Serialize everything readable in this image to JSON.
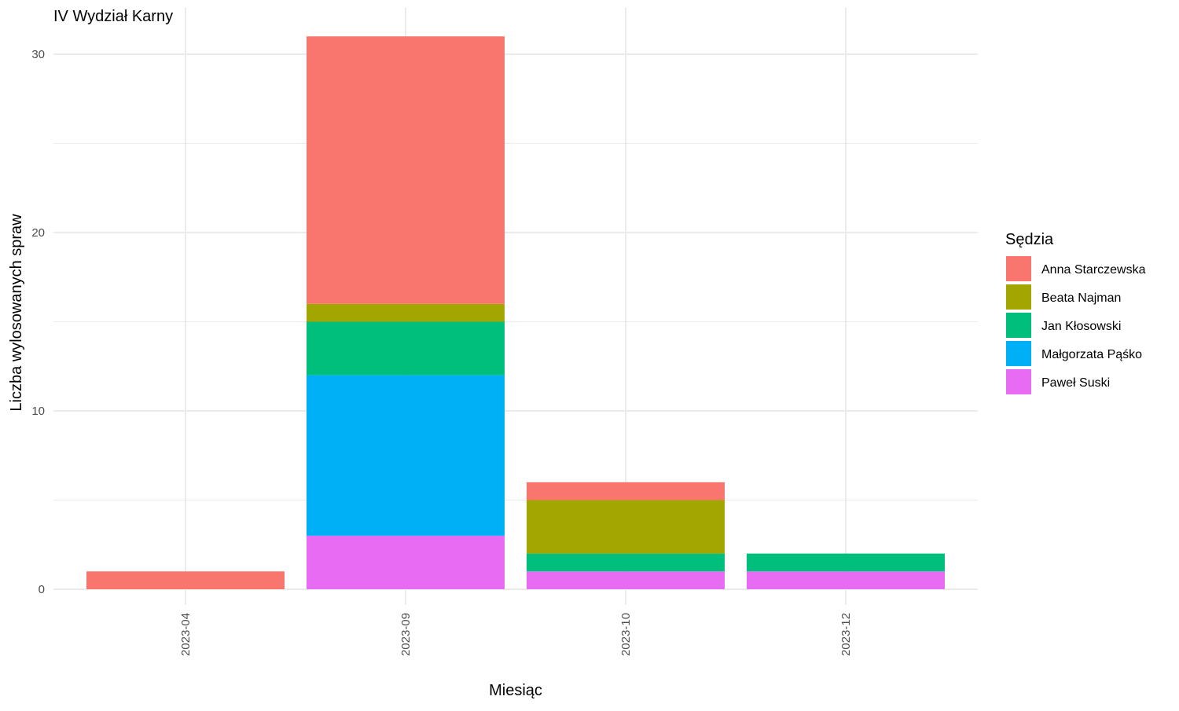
{
  "chart_data": {
    "type": "bar",
    "stacked": true,
    "title": "IV Wydział Karny",
    "xlabel": "Miesiąc",
    "ylabel": "Liczba wylosowanych spraw",
    "categories": [
      "2023-04",
      "2023-09",
      "2023-10",
      "2023-12"
    ],
    "ylim": [
      0,
      31
    ],
    "yticks": [
      0,
      10,
      20,
      30
    ],
    "grid": true,
    "legend_title": "Sędzia",
    "legend_position": "right",
    "stack_order_bottom_to_top": [
      "Paweł Suski",
      "Małgorzata Pąśko",
      "Jan Kłosowski",
      "Beata Najman",
      "Anna Starczewska"
    ],
    "series": [
      {
        "name": "Anna Starczewska",
        "color": "#F8766D",
        "values": [
          1,
          15,
          1,
          0
        ]
      },
      {
        "name": "Beata Najman",
        "color": "#A3A500",
        "values": [
          0,
          1,
          3,
          0
        ]
      },
      {
        "name": "Jan Kłosowski",
        "color": "#00BF7D",
        "values": [
          0,
          3,
          1,
          1
        ]
      },
      {
        "name": "Małgorzata Pąśko",
        "color": "#00B0F6",
        "values": [
          0,
          9,
          0,
          0
        ]
      },
      {
        "name": "Paweł Suski",
        "color": "#E76BF3",
        "values": [
          0,
          3,
          1,
          1
        ]
      }
    ]
  }
}
